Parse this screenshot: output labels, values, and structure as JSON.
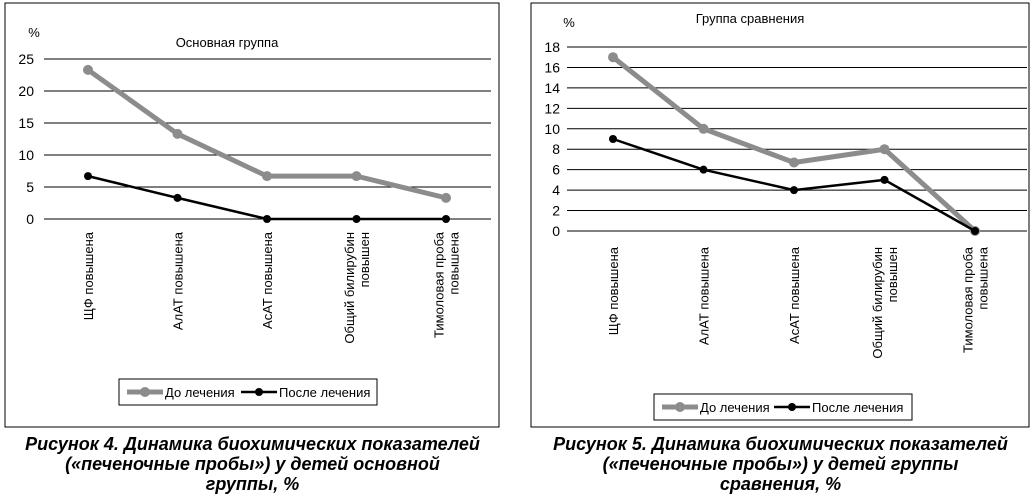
{
  "chart_data": [
    {
      "type": "line",
      "title": "Основная группа",
      "ylabel": "%",
      "categories": [
        "ЩФ повышена",
        "АлАТ повышена",
        "АсАТ повышена",
        "Общий билирубин повышен",
        "Тимоловая проба повышена"
      ],
      "category_lines": [
        [
          "ЩФ повышена"
        ],
        [
          "АлАТ повышена"
        ],
        [
          "АсАТ повышена"
        ],
        [
          "Общий билирубин",
          "повышен"
        ],
        [
          "Тимоловая проба",
          "повышена"
        ]
      ],
      "ylim": [
        0,
        25
      ],
      "yticks": [
        "0",
        "5",
        "10",
        "15",
        "20",
        "25"
      ],
      "series": [
        {
          "name": "До лечения",
          "values": [
            23.3,
            13.3,
            6.7,
            6.7,
            3.3
          ],
          "color": "#8c8c8c"
        },
        {
          "name": "После лечения",
          "values": [
            6.7,
            3.3,
            0,
            0,
            0
          ],
          "color": "#000000"
        }
      ],
      "grid": true,
      "legend": "bottom",
      "caption": [
        "Рисунок 4. Динамика биохимических показателей",
        "(«печеночные пробы») у детей основной",
        "группы, %"
      ]
    },
    {
      "type": "line",
      "title": "Группа сравнения",
      "ylabel": "%",
      "categories": [
        "ЩФ повышена",
        "АлАТ повышена",
        "АсАТ повышена",
        "Общий билирубин повышен",
        "Тимоловая проба повышена"
      ],
      "category_lines": [
        [
          "ЩФ повышена"
        ],
        [
          "АлАТ повышена"
        ],
        [
          "АсАТ повышена"
        ],
        [
          "Общий билирубин",
          "повышен"
        ],
        [
          "Тимоловая проба",
          "повышена"
        ]
      ],
      "ylim": [
        0,
        18
      ],
      "yticks": [
        "0",
        "2",
        "4",
        "6",
        "8",
        "10",
        "12",
        "14",
        "16",
        "18"
      ],
      "series": [
        {
          "name": "До лечения",
          "values": [
            17,
            10,
            6.7,
            8,
            0
          ],
          "color": "#8c8c8c"
        },
        {
          "name": "После лечения",
          "values": [
            9,
            6,
            4,
            5,
            0
          ],
          "color": "#000000"
        }
      ],
      "grid": true,
      "legend": "bottom",
      "caption": [
        "Рисунок 5. Динамика биохимических показателей",
        "(«печеночные пробы») у детей группы",
        "сравнения, %"
      ]
    }
  ]
}
